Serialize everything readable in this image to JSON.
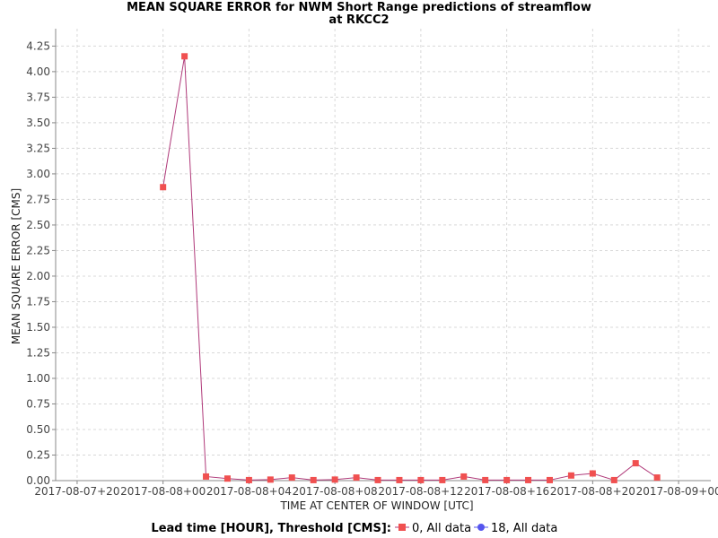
{
  "chart_data": {
    "type": "line",
    "title": "MEAN SQUARE ERROR for NWM Short Range predictions of streamflow",
    "subtitle": "at RKCC2",
    "xlabel": "TIME AT CENTER OF WINDOW [UTC]",
    "ylabel": "MEAN SQUARE ERROR [CMS]",
    "ylim": [
      0,
      4.42
    ],
    "y_ticks": [
      "0.00",
      "0.25",
      "0.50",
      "0.75",
      "1.00",
      "1.25",
      "1.50",
      "1.75",
      "2.00",
      "2.25",
      "2.50",
      "2.75",
      "3.00",
      "3.25",
      "3.50",
      "3.75",
      "4.00",
      "4.25"
    ],
    "xlim": [
      "2017-08-07T19:00",
      "2017-08-09T01:30"
    ],
    "x_ticks": [
      "2017-08-07+20",
      "2017-08-08+00",
      "2017-08-08+04",
      "2017-08-08+08",
      "2017-08-08+12",
      "2017-08-08+16",
      "2017-08-08+20",
      "2017-08-09+00"
    ],
    "x_tick_positions": [
      "2017-08-07T20:00",
      "2017-08-08T00:00",
      "2017-08-08T04:00",
      "2017-08-08T08:00",
      "2017-08-08T12:00",
      "2017-08-08T16:00",
      "2017-08-08T20:00",
      "2017-08-09T00:00"
    ],
    "grid": true,
    "legend_placement": "bottom",
    "legend_title": "Lead time [HOUR], Threshold [CMS]:",
    "series": [
      {
        "name": "0, All data",
        "color": "#f05050",
        "line_color": "#b03a7a",
        "marker": "square",
        "x": [
          "2017-08-08T00:00",
          "2017-08-08T01:00",
          "2017-08-08T02:00",
          "2017-08-08T03:00",
          "2017-08-08T04:00",
          "2017-08-08T05:00",
          "2017-08-08T06:00",
          "2017-08-08T07:00",
          "2017-08-08T08:00",
          "2017-08-08T09:00",
          "2017-08-08T10:00",
          "2017-08-08T11:00",
          "2017-08-08T12:00",
          "2017-08-08T13:00",
          "2017-08-08T14:00",
          "2017-08-08T15:00",
          "2017-08-08T16:00",
          "2017-08-08T17:00",
          "2017-08-08T18:00",
          "2017-08-08T19:00",
          "2017-08-08T20:00",
          "2017-08-08T21:00",
          "2017-08-08T22:00",
          "2017-08-08T23:00"
        ],
        "values": [
          2.87,
          4.15,
          0.04,
          0.02,
          0.005,
          0.01,
          0.03,
          0.005,
          0.01,
          0.03,
          0.005,
          0.005,
          0.005,
          0.005,
          0.04,
          0.005,
          0.005,
          0.005,
          0.005,
          0.05,
          0.07,
          0.005,
          0.17,
          0.03
        ]
      },
      {
        "name": "18, All data",
        "color": "#5555ee",
        "marker": "circle",
        "x": [],
        "values": []
      }
    ]
  }
}
